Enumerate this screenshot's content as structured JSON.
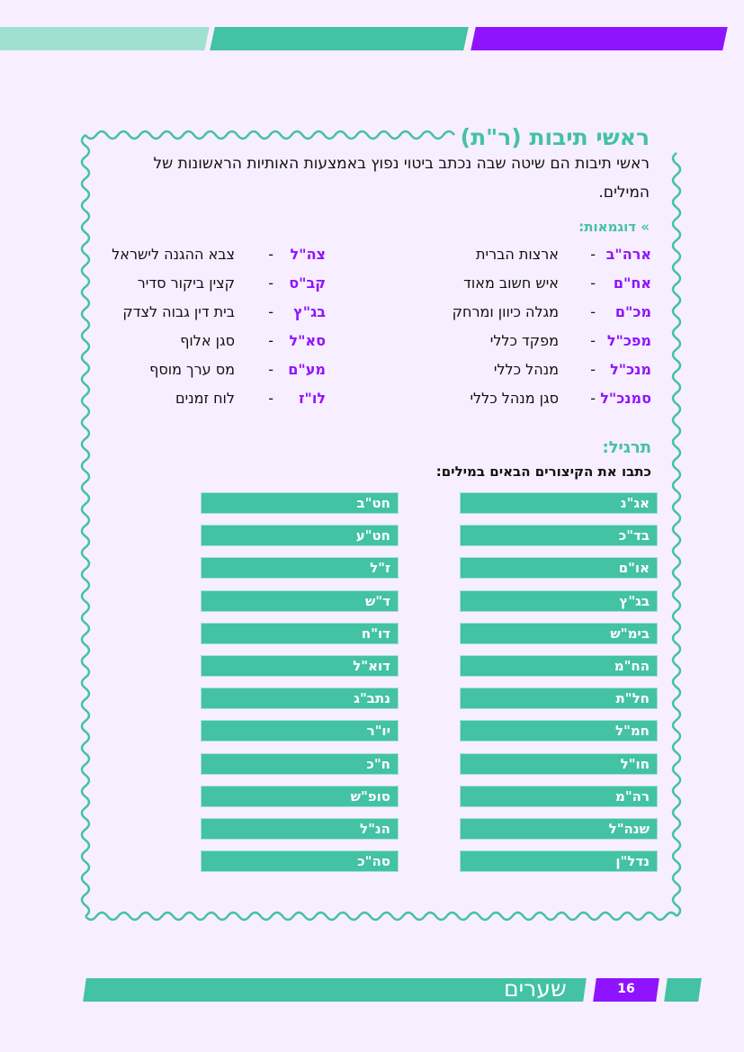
{
  "colors": {
    "background": "#f7eeff",
    "teal": "#43c2a4",
    "light_teal": "#a0e0d0",
    "purple": "#9013fe"
  },
  "title": "ראשי תיבות (ר\"ת)",
  "intro": "ראשי תיבות הם שיטה שבה נכתב ביטוי נפוץ באמצעות האותיות הראשונות של המילים.",
  "examples_label": "» דוגמאות:",
  "examples": {
    "right": [
      {
        "abbr": "ארה\"ב",
        "meaning": "ארצות הברית"
      },
      {
        "abbr": "אח\"ם",
        "meaning": "איש חשוב מאוד"
      },
      {
        "abbr": "מכ\"ם",
        "meaning": "מגלה כיוון ומרחק"
      },
      {
        "abbr": "מפכ\"ל",
        "meaning": "מפקד כללי"
      },
      {
        "abbr": "מנכ\"ל",
        "meaning": "מנהל כללי"
      },
      {
        "abbr": "סמנכ\"ל",
        "meaning": "סגן מנהל כללי"
      }
    ],
    "left": [
      {
        "abbr": "צה\"ל",
        "meaning": "צבא ההגנה לישראל"
      },
      {
        "abbr": "קב\"ס",
        "meaning": "קצין ביקור סדיר"
      },
      {
        "abbr": "בג\"ץ",
        "meaning": "בית דין גבוה לצדק"
      },
      {
        "abbr": "סא\"ל",
        "meaning": "סגן אלוף"
      },
      {
        "abbr": "מע\"ם",
        "meaning": "מס ערך מוסף"
      },
      {
        "abbr": "לו\"ז",
        "meaning": "לוח זמנים"
      }
    ],
    "dash": "-"
  },
  "exercise": {
    "heading": "תרגיל:",
    "instruction": "כתבו את הקיצורים הבאים במילים:",
    "right": [
      "אג\"נ",
      "בד\"כ",
      "או\"ם",
      "בג\"ץ",
      "בימ\"ש",
      "הח\"מ",
      "חל\"ת",
      "חמ\"ל",
      "חו\"ל",
      "רה\"מ",
      "שנה\"ל",
      "נדל\"ן"
    ],
    "left": [
      "חט\"ב",
      "חט\"ע",
      "ז\"ל",
      "ד\"ש",
      "דו\"ח",
      "דוא\"ל",
      "נתב\"ג",
      "יו\"ר",
      "ח\"כ",
      "סופ\"ש",
      "הנ\"ל",
      "סה\"כ"
    ]
  },
  "footer": {
    "book_title": "שערים",
    "page_number": "16"
  }
}
